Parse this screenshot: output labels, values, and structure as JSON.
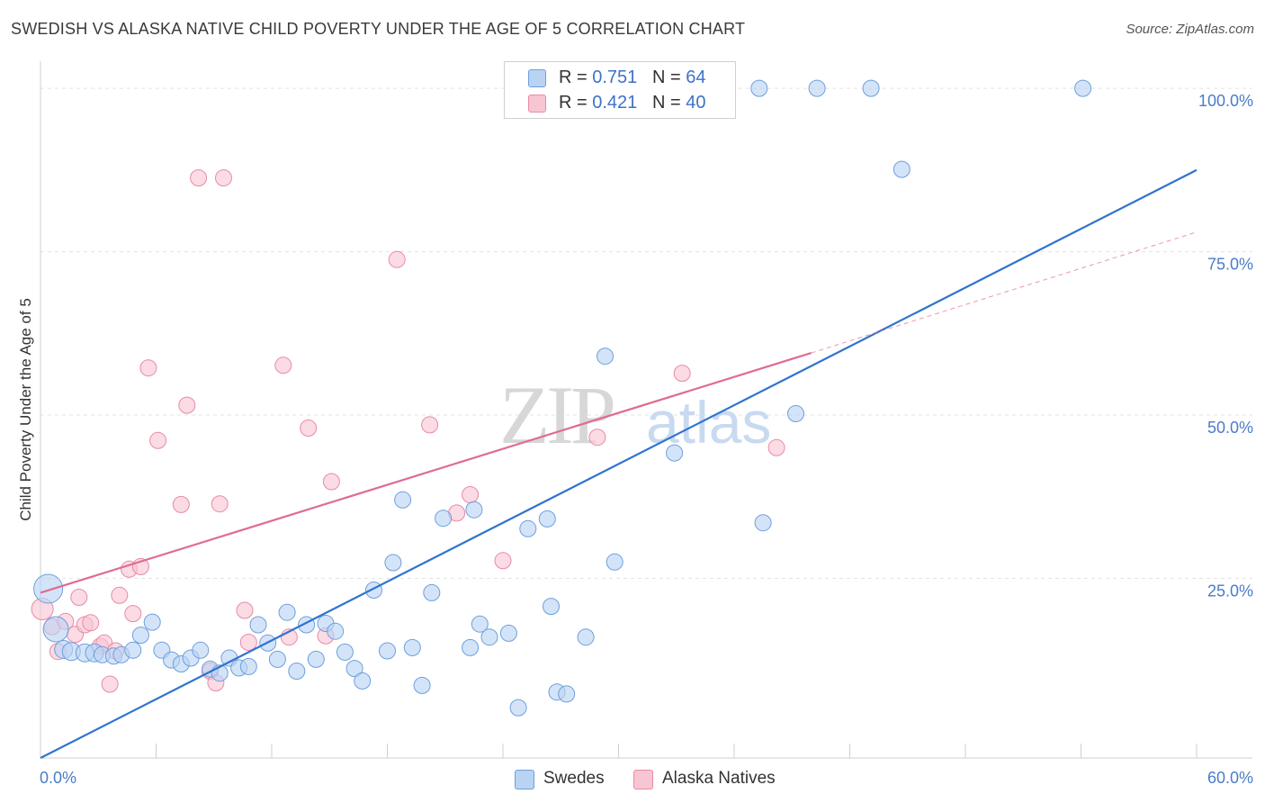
{
  "title": "SWEDISH VS ALASKA NATIVE CHILD POVERTY UNDER THE AGE OF 5 CORRELATION CHART",
  "source": "Source: ZipAtlas.com",
  "watermark": {
    "zip": "ZIP",
    "atlas": "atlas"
  },
  "colors": {
    "blue_fill": "#b9d3f3",
    "blue_stroke": "#6d9fdc",
    "blue_line": "#2f74cf",
    "pink_fill": "#f8c5d3",
    "pink_stroke": "#e88aa6",
    "pink_line": "#e06b93",
    "axis_text": "#4a7cc9",
    "grid": "#e3e3e3"
  },
  "legend_top": {
    "rows": [
      {
        "r_label": "R = ",
        "r_value": "0.751",
        "n_label": "N = ",
        "n_value": "64",
        "color": "#b9d3f3",
        "stroke": "#6d9fdc"
      },
      {
        "r_label": "R = ",
        "r_value": "0.421",
        "n_label": "N = ",
        "n_value": "40",
        "color": "#f8c5d3",
        "stroke": "#e88aa6"
      }
    ]
  },
  "legend_bottom": [
    {
      "label": "Swedes",
      "color": "#b9d3f3",
      "stroke": "#6d9fdc"
    },
    {
      "label": "Alaska Natives",
      "color": "#f8c5d3",
      "stroke": "#e88aa6"
    }
  ],
  "chart_data": {
    "type": "scatter",
    "title": "SWEDISH VS ALASKA NATIVE CHILD POVERTY UNDER THE AGE OF 5 CORRELATION CHART",
    "xlabel": "",
    "ylabel": "Child Poverty Under the Age of 5",
    "xlim": [
      0,
      60
    ],
    "ylim": [
      -2.5,
      102.5
    ],
    "x_tick_labels": [
      "0.0%",
      "60.0%"
    ],
    "y_ticks": [
      25,
      50,
      75,
      100
    ],
    "y_tick_labels": [
      "25.0%",
      "50.0%",
      "75.0%",
      "100.0%"
    ],
    "grid": "horizontal dashed",
    "series": [
      {
        "name": "Swedes",
        "color": "#b9d3f3",
        "trend": {
          "x": [
            0,
            60
          ],
          "y": [
            -2.5,
            87.5
          ]
        },
        "points": [
          [
            0.4,
            23.4,
            16
          ],
          [
            0.8,
            17.2,
            14
          ],
          [
            1.2,
            14.1,
            10
          ],
          [
            1.6,
            13.8,
            10
          ],
          [
            2.3,
            13.6,
            10
          ],
          [
            2.8,
            13.6,
            10
          ],
          [
            3.2,
            13.3,
            9
          ],
          [
            3.8,
            13.1,
            9
          ],
          [
            4.2,
            13.3,
            9
          ],
          [
            4.8,
            14.0,
            9
          ],
          [
            5.2,
            16.3,
            9
          ],
          [
            5.8,
            18.3,
            9
          ],
          [
            6.3,
            14.0,
            9
          ],
          [
            6.8,
            12.5,
            9
          ],
          [
            7.3,
            11.9,
            9
          ],
          [
            7.8,
            12.8,
            9
          ],
          [
            8.3,
            14.0,
            9
          ],
          [
            8.8,
            11.1,
            9
          ],
          [
            9.3,
            10.5,
            9
          ],
          [
            9.8,
            12.8,
            9
          ],
          [
            10.3,
            11.3,
            9
          ],
          [
            10.8,
            11.5,
            9
          ],
          [
            11.3,
            17.9,
            9
          ],
          [
            11.8,
            15.1,
            9
          ],
          [
            12.3,
            12.6,
            9
          ],
          [
            12.8,
            19.8,
            9
          ],
          [
            13.3,
            10.8,
            9
          ],
          [
            13.8,
            17.9,
            9
          ],
          [
            14.3,
            12.6,
            9
          ],
          [
            14.8,
            18.1,
            9
          ],
          [
            15.3,
            16.9,
            9
          ],
          [
            15.8,
            13.7,
            9
          ],
          [
            16.3,
            11.2,
            9
          ],
          [
            16.7,
            9.3,
            9
          ],
          [
            17.3,
            23.2,
            9
          ],
          [
            18.0,
            13.9,
            9
          ],
          [
            18.3,
            27.4,
            9
          ],
          [
            18.8,
            37.0,
            9
          ],
          [
            19.3,
            14.4,
            9
          ],
          [
            19.8,
            8.6,
            9
          ],
          [
            20.3,
            22.8,
            9
          ],
          [
            20.9,
            34.2,
            9
          ],
          [
            22.3,
            14.4,
            9
          ],
          [
            22.5,
            35.5,
            9
          ],
          [
            22.8,
            18.0,
            9
          ],
          [
            23.3,
            16.0,
            9
          ],
          [
            24.3,
            16.6,
            9
          ],
          [
            24.8,
            5.2,
            9
          ],
          [
            25.3,
            32.6,
            9
          ],
          [
            26.3,
            34.1,
            9
          ],
          [
            26.8,
            7.6,
            9
          ],
          [
            26.5,
            20.7,
            9
          ],
          [
            27.3,
            7.3,
            9
          ],
          [
            28.3,
            16.0,
            9
          ],
          [
            29.3,
            59.0,
            9
          ],
          [
            29.8,
            27.5,
            9
          ],
          [
            32.9,
            44.2,
            9
          ],
          [
            37.3,
            100.0,
            9
          ],
          [
            37.5,
            33.5,
            9
          ],
          [
            39.2,
            50.2,
            9
          ],
          [
            40.3,
            100.0,
            9
          ],
          [
            43.1,
            100.0,
            9
          ],
          [
            44.7,
            87.6,
            9
          ],
          [
            54.1,
            100.0,
            9
          ]
        ]
      },
      {
        "name": "Alaska Natives",
        "color": "#f8c5d3",
        "trend": {
          "x": [
            0,
            40
          ],
          "y": [
            22.8,
            59.5
          ]
        },
        "trend_dashed": {
          "x": [
            40,
            60
          ],
          "y": [
            59.5,
            78.0
          ]
        },
        "points": [
          [
            0.1,
            20.3,
            12
          ],
          [
            0.6,
            17.6,
            9
          ],
          [
            0.9,
            13.8,
            9
          ],
          [
            1.3,
            18.4,
            9
          ],
          [
            1.8,
            16.4,
            9
          ],
          [
            2.0,
            22.1,
            9
          ],
          [
            2.3,
            17.9,
            9
          ],
          [
            2.6,
            18.2,
            9
          ],
          [
            3.1,
            14.6,
            9
          ],
          [
            3.3,
            15.1,
            9
          ],
          [
            3.6,
            8.8,
            9
          ],
          [
            3.9,
            13.9,
            9
          ],
          [
            4.1,
            22.4,
            9
          ],
          [
            4.6,
            26.4,
            9
          ],
          [
            4.8,
            19.6,
            9
          ],
          [
            5.2,
            26.8,
            9
          ],
          [
            5.6,
            57.2,
            9
          ],
          [
            6.1,
            46.1,
            9
          ],
          [
            7.3,
            36.3,
            9
          ],
          [
            7.6,
            51.5,
            9
          ],
          [
            8.2,
            86.3,
            9
          ],
          [
            8.8,
            10.8,
            9
          ],
          [
            9.1,
            9.0,
            9
          ],
          [
            9.3,
            36.4,
            9
          ],
          [
            9.5,
            86.3,
            9
          ],
          [
            10.6,
            20.1,
            9
          ],
          [
            10.8,
            15.2,
            9
          ],
          [
            12.6,
            57.6,
            9
          ],
          [
            12.9,
            16.0,
            9
          ],
          [
            13.9,
            48.0,
            9
          ],
          [
            14.8,
            16.2,
            9
          ],
          [
            15.1,
            39.8,
            9
          ],
          [
            18.5,
            73.8,
            9
          ],
          [
            20.2,
            48.5,
            9
          ],
          [
            21.6,
            35.0,
            9
          ],
          [
            22.3,
            37.8,
            9
          ],
          [
            24.0,
            27.7,
            9
          ],
          [
            28.9,
            46.6,
            9
          ],
          [
            33.3,
            56.4,
            9
          ],
          [
            38.2,
            45.0,
            9
          ]
        ]
      }
    ]
  }
}
